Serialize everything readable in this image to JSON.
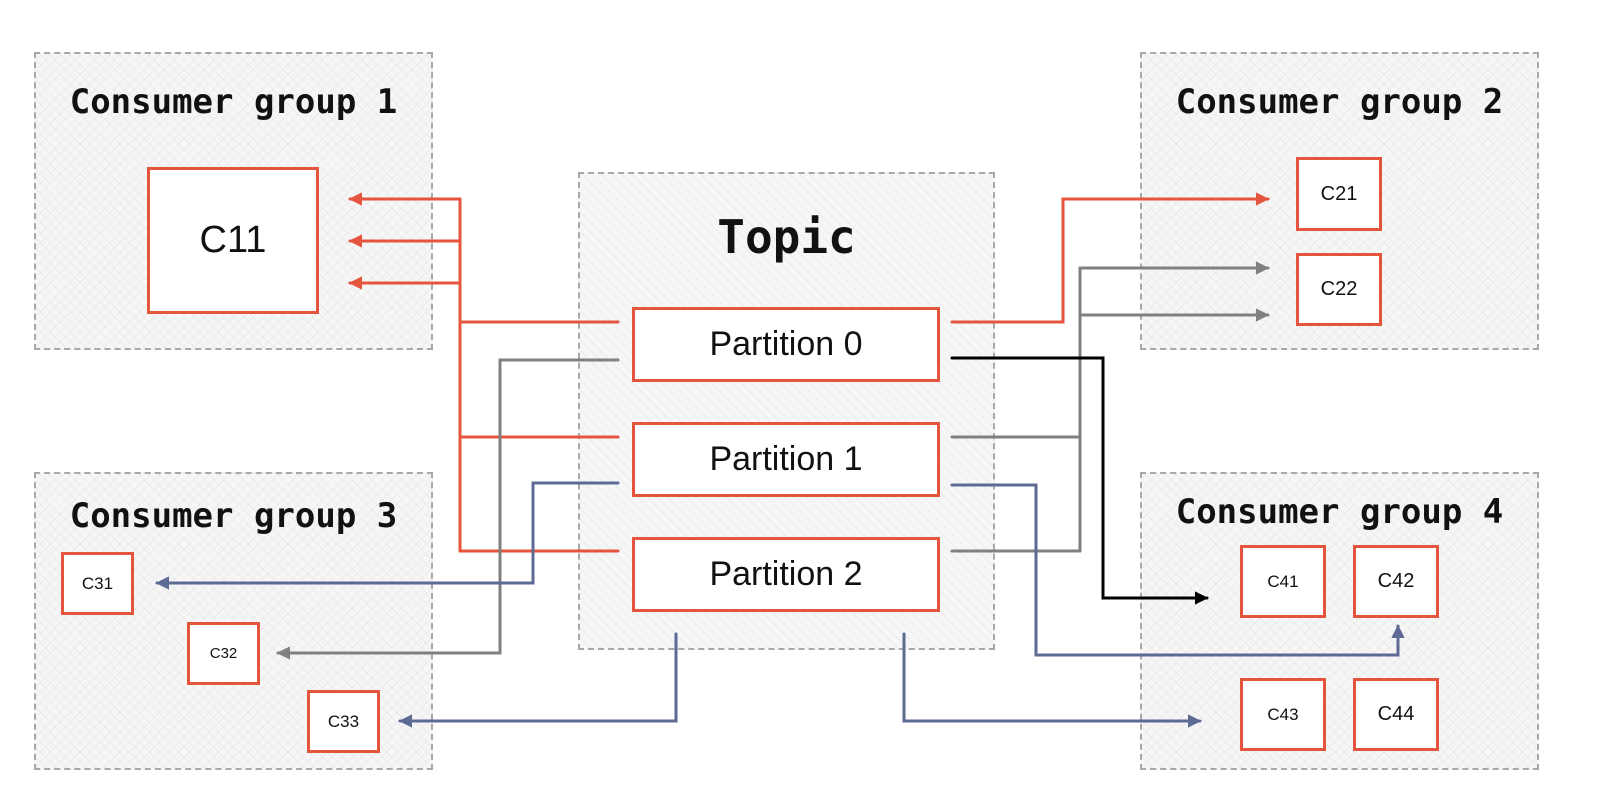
{
  "groups": [
    {
      "id": "cg1",
      "title": "Consumer group 1"
    },
    {
      "id": "cg2",
      "title": "Consumer group 2"
    },
    {
      "id": "cg3",
      "title": "Consumer group 3"
    },
    {
      "id": "cg4",
      "title": "Consumer group 4"
    }
  ],
  "topic": {
    "title": "Topic",
    "partitions": [
      "Partition 0",
      "Partition 1",
      "Partition 2"
    ]
  },
  "consumers": {
    "c11": "C11",
    "c21": "C21",
    "c22": "C22",
    "c31": "C31",
    "c32": "C32",
    "c33": "C33",
    "c41": "C41",
    "c42": "C42",
    "c43": "C43",
    "c44": "C44"
  },
  "colors": {
    "group1": "#e5553d",
    "group2": "#808080",
    "group3": "#5c6a94",
    "group4": "#000000",
    "box_border": "#e5553d"
  }
}
